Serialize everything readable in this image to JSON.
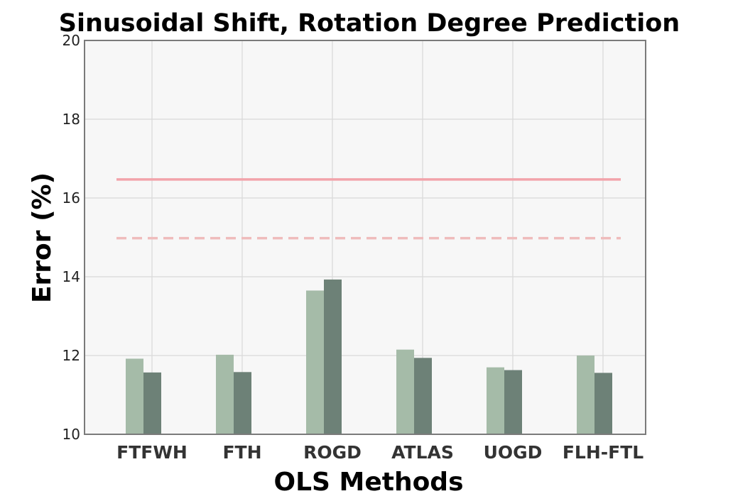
{
  "chart_data": {
    "type": "bar",
    "title": "Sinusoidal Shift, Rotation Degree Prediction",
    "xlabel": "OLS Methods",
    "ylabel": "Error (%)",
    "ylim": [
      10,
      20
    ],
    "yticks": [
      10,
      12,
      14,
      16,
      18,
      20
    ],
    "grid": true,
    "categories": [
      "FTFWH",
      "FTH",
      "ROGD",
      "ATLAS",
      "UOGD",
      "FLH-FTL"
    ],
    "series": [
      {
        "values": [
          11.92,
          12.02,
          13.65,
          12.15,
          11.7,
          12.0
        ],
        "color": "#a5bba8"
      },
      {
        "values": [
          11.57,
          11.58,
          13.93,
          11.94,
          11.63,
          11.56
        ],
        "color": "#6d8177"
      }
    ],
    "reference_lines": [
      {
        "value": 16.47,
        "style": "solid",
        "color": "#f2a3aa"
      },
      {
        "value": 14.98,
        "style": "dashed",
        "color": "#efbcbc"
      }
    ],
    "plot_background": "#f7f7f7",
    "grid_color": "#d9d9d9",
    "frame_color": "#7a7a7a"
  }
}
